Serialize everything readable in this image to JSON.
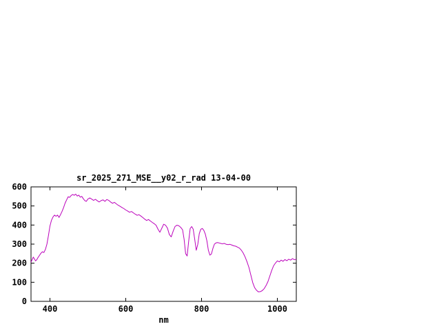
{
  "page": {
    "background": "#ffffff"
  },
  "chart_data": {
    "type": "line",
    "title": "sr_2025_271_MSE__y02_r_rad 13-04-00",
    "xlabel": "nm",
    "ylabel": "",
    "xlim": [
      350,
      1050
    ],
    "ylim": [
      0,
      600
    ],
    "xticks": [
      400,
      600,
      800,
      1000
    ],
    "yticks": [
      0,
      100,
      200,
      300,
      400,
      500,
      600
    ],
    "grid": false,
    "legend": "none",
    "border_color": "#000000",
    "line_color": "#bb00bb",
    "series": [
      {
        "color": "#bb00bb",
        "x": [
          350,
          353,
          356,
          359,
          362,
          365,
          368,
          372,
          376,
          380,
          384,
          388,
          392,
          396,
          400,
          404,
          408,
          412,
          416,
          420,
          424,
          428,
          432,
          436,
          440,
          444,
          448,
          452,
          456,
          460,
          464,
          468,
          472,
          476,
          480,
          484,
          488,
          492,
          496,
          500,
          505,
          510,
          515,
          520,
          525,
          530,
          535,
          540,
          545,
          550,
          555,
          560,
          565,
          570,
          575,
          580,
          585,
          590,
          595,
          600,
          605,
          610,
          615,
          620,
          625,
          630,
          635,
          640,
          645,
          650,
          655,
          660,
          665,
          670,
          675,
          680,
          685,
          690,
          695,
          700,
          705,
          710,
          715,
          720,
          725,
          730,
          735,
          740,
          745,
          750,
          754,
          758,
          762,
          766,
          770,
          774,
          778,
          782,
          786,
          790,
          794,
          798,
          802,
          806,
          810,
          814,
          818,
          822,
          826,
          830,
          834,
          838,
          842,
          846,
          850,
          855,
          860,
          865,
          870,
          875,
          880,
          885,
          890,
          895,
          900,
          905,
          910,
          915,
          920,
          925,
          930,
          935,
          940,
          945,
          950,
          955,
          960,
          965,
          970,
          975,
          980,
          985,
          990,
          995,
          1000,
          1005,
          1010,
          1015,
          1020,
          1025,
          1030,
          1035,
          1040,
          1045,
          1050
        ],
        "y": [
          205,
          218,
          232,
          222,
          212,
          218,
          228,
          240,
          252,
          260,
          256,
          272,
          300,
          345,
          395,
          425,
          442,
          452,
          446,
          452,
          440,
          455,
          472,
          492,
          515,
          532,
          548,
          545,
          555,
          560,
          556,
          562,
          552,
          557,
          546,
          550,
          538,
          528,
          524,
          536,
          542,
          536,
          529,
          535,
          527,
          521,
          528,
          532,
          524,
          534,
          529,
          521,
          514,
          519,
          511,
          504,
          498,
          492,
          486,
          479,
          473,
          467,
          471,
          464,
          457,
          451,
          454,
          447,
          439,
          431,
          424,
          429,
          421,
          414,
          407,
          399,
          378,
          362,
          383,
          404,
          399,
          384,
          350,
          338,
          368,
          392,
          399,
          396,
          388,
          375,
          325,
          250,
          238,
          315,
          382,
          392,
          378,
          325,
          268,
          298,
          355,
          378,
          382,
          372,
          352,
          318,
          268,
          242,
          248,
          278,
          300,
          306,
          308,
          306,
          304,
          301,
          304,
          299,
          297,
          299,
          295,
          291,
          289,
          284,
          279,
          268,
          253,
          232,
          207,
          177,
          138,
          98,
          72,
          58,
          50,
          51,
          56,
          66,
          82,
          103,
          132,
          162,
          186,
          201,
          212,
          207,
          216,
          210,
          219,
          213,
          221,
          216,
          224,
          218,
          221
        ]
      }
    ]
  }
}
